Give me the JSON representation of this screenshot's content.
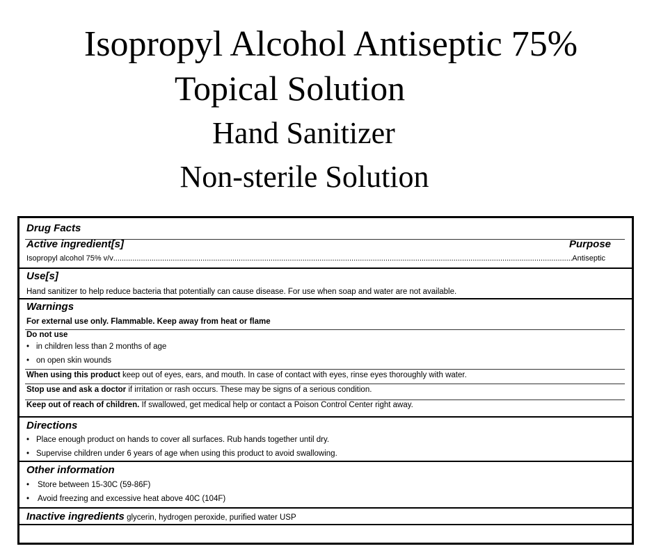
{
  "titles": [
    "Isopropyl Alcohol Antiseptic 75%",
    "Topical Solution",
    "Hand Sanitizer",
    "Non-sterile Solution"
  ],
  "drug_facts": {
    "heading": "Drug Facts",
    "active": {
      "heading": "Active ingredient[s]",
      "purpose_heading": "Purpose",
      "ingredient": "Isopropyl alcohol 75% v/v",
      "purpose": "Antiseptic"
    },
    "uses": {
      "heading": "Use[s]",
      "text": "Hand sanitizer to help reduce bacteria that potentially can cause disease. For use when soap and water are not available."
    },
    "warnings": {
      "heading": "Warnings",
      "external": "For external use only. Flammable. Keep away from heat or flame",
      "do_not_use": "Do not use",
      "do_not_use_items": [
        "in children less than 2 months of age",
        "on open skin wounds"
      ],
      "when_using_label": "When using this product",
      "when_using_text": " keep out of eyes, ears, and mouth. In case of contact with eyes, rinse eyes thoroughly with water.",
      "stop_use_label": "Stop use and ask a doctor",
      "stop_use_text": " if irritation or rash occurs. These may be signs of a serious condition.",
      "keep_out_label": "Keep out of reach of children.",
      "keep_out_text": " If swallowed, get medical help or contact a Poison Control Center right away."
    },
    "directions": {
      "heading": "Directions",
      "items": [
        "Place enough product on hands to cover all surfaces. Rub hands together until dry.",
        "Supervise children under 6 years of age when using this product to avoid swallowing."
      ]
    },
    "other": {
      "heading": "Other information",
      "items": [
        "Store between 15-30C (59-86F)",
        "Avoid freezing and excessive heat above 40C (104F)"
      ]
    },
    "inactive": {
      "heading": "Inactive ingredients",
      "text": " glycerin, hydrogen peroxide, purified water USP"
    }
  }
}
